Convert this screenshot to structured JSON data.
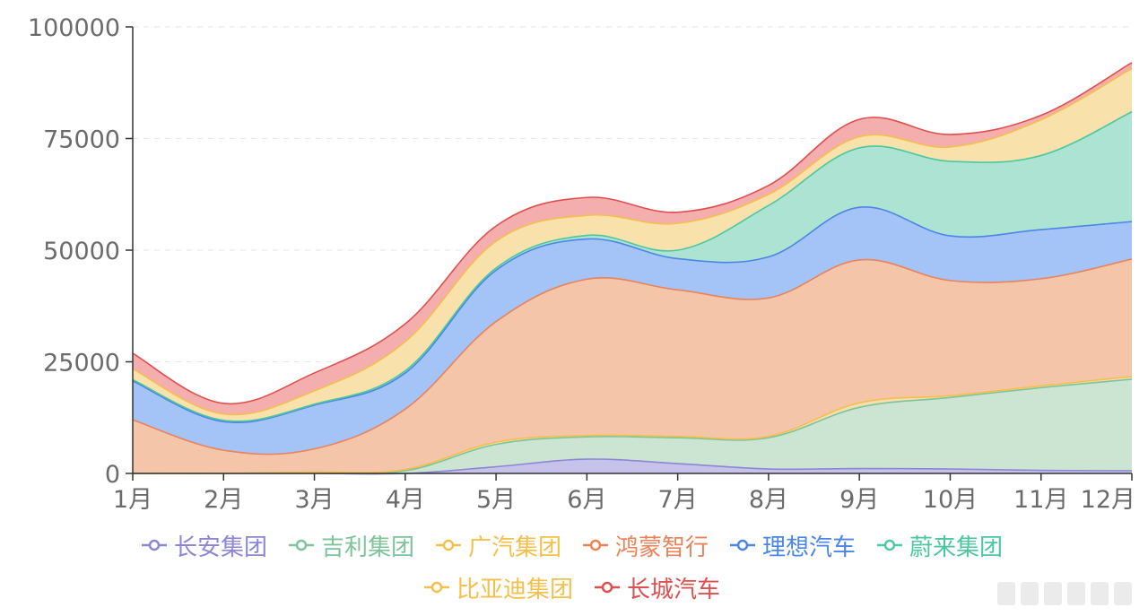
{
  "colors": {
    "axis": "#333333",
    "grid": "#e6e6e6",
    "tick_text": "#6b6b6b"
  },
  "chart_data": {
    "type": "area",
    "stacked": true,
    "title": "",
    "xlabel": "",
    "ylabel": "",
    "categories": [
      "1月",
      "2月",
      "3月",
      "4月",
      "5月",
      "6月",
      "7月",
      "8月",
      "9月",
      "10月",
      "11月",
      "12月"
    ],
    "ylim": [
      0,
      100000
    ],
    "yticks": [
      0,
      25000,
      50000,
      75000,
      100000
    ],
    "grid": true,
    "legend_position": "bottom",
    "series": [
      {
        "name": "长安集团",
        "color": "#8b87d6",
        "fill": "#c3bfe8",
        "values": [
          0,
          0,
          0,
          0,
          1500,
          3200,
          2200,
          1000,
          1100,
          1000,
          700,
          600
        ]
      },
      {
        "name": "吉利集团",
        "color": "#7cc49a",
        "fill": "#c9e3d0",
        "values": [
          0,
          0,
          300,
          600,
          5000,
          5000,
          5800,
          7000,
          13700,
          16000,
          18500,
          20500
        ]
      },
      {
        "name": "广汽集团",
        "color": "#f3bf4d",
        "fill": "#f6dcb0",
        "values": [
          0,
          0,
          0,
          300,
          500,
          300,
          300,
          300,
          1000,
          400,
          400,
          600
        ]
      },
      {
        "name": "鸿蒙智行",
        "color": "#e8835a",
        "fill": "#f4c2a5",
        "values": [
          12000,
          5200,
          5200,
          13500,
          27000,
          35000,
          32800,
          31000,
          32000,
          25800,
          24000,
          26300
        ]
      },
      {
        "name": "理想汽车",
        "color": "#4a86e8",
        "fill": "#9fc0f5",
        "values": [
          8700,
          6400,
          9800,
          8100,
          11500,
          9000,
          7000,
          9200,
          11800,
          10000,
          11000,
          8400
        ]
      },
      {
        "name": "蔚来集团",
        "color": "#4cc7a0",
        "fill": "#a9e1d0",
        "values": [
          300,
          300,
          200,
          500,
          500,
          800,
          1900,
          11500,
          13300,
          16700,
          16600,
          24600
        ]
      },
      {
        "name": "比亚迪集团",
        "color": "#f3bf4d",
        "fill": "#f8dfa6",
        "values": [
          2400,
          1400,
          3000,
          6500,
          6000,
          4500,
          6000,
          2500,
          2500,
          3200,
          8000,
          9700
        ]
      },
      {
        "name": "长城汽车",
        "color": "#e04f4f",
        "fill": "#f3aaaa",
        "values": [
          3500,
          2400,
          4000,
          4000,
          3400,
          4000,
          2500,
          2000,
          3900,
          2800,
          1000,
          1300
        ]
      }
    ]
  }
}
